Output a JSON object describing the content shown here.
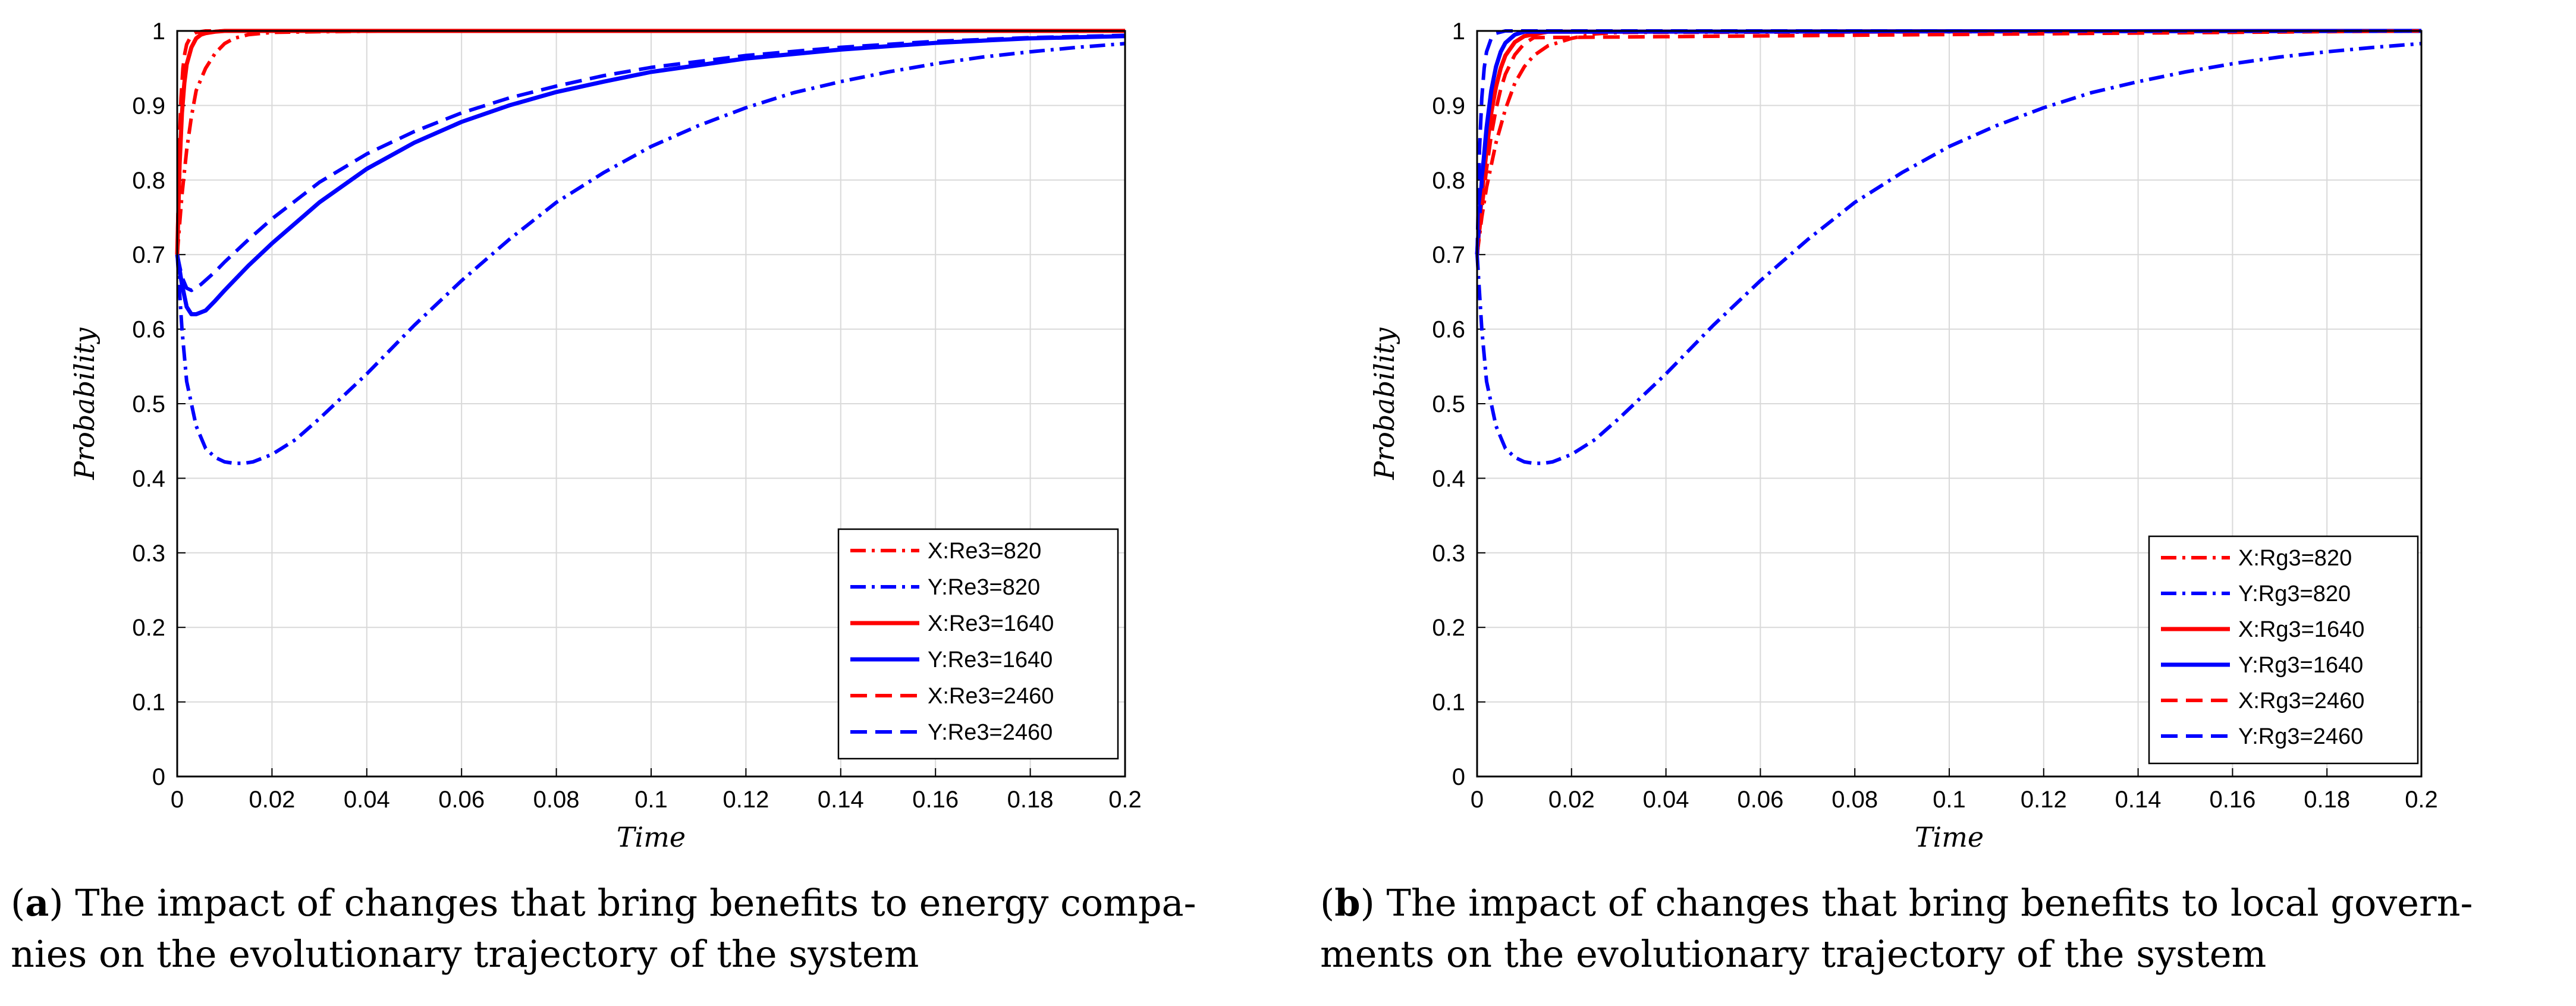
{
  "colors": {
    "red": "#ff0000",
    "blue": "#0000ff",
    "grid": "#d9d9d9",
    "axis": "#000000"
  },
  "chart_data": [
    {
      "type": "line",
      "panel": "a",
      "xlabel": "Time",
      "ylabel": "Probability",
      "xlim": [
        0,
        0.2
      ],
      "ylim": [
        0,
        1
      ],
      "xticks": [
        "0",
        "0.02",
        "0.04",
        "0.06",
        "0.08",
        "0.1",
        "0.12",
        "0.14",
        "0.16",
        "0.18",
        "0.2"
      ],
      "yticks": [
        "0",
        "0.1",
        "0.2",
        "0.3",
        "0.4",
        "0.5",
        "0.6",
        "0.7",
        "0.8",
        "0.9",
        "1"
      ],
      "grid": true,
      "legend_position": "bottom-right",
      "series": [
        {
          "name": "X:Re3=820",
          "color": "red",
          "style": "dashdot",
          "x": [
            0,
            0.001,
            0.002,
            0.003,
            0.004,
            0.006,
            0.008,
            0.01,
            0.012,
            0.015,
            0.02,
            0.03,
            0.05,
            0.1,
            0.2
          ],
          "values": [
            0.7,
            0.78,
            0.84,
            0.885,
            0.92,
            0.95,
            0.97,
            0.983,
            0.99,
            0.995,
            0.998,
            0.999,
            1,
            1,
            1
          ]
        },
        {
          "name": "Y:Re3=820",
          "color": "blue",
          "style": "dashdot",
          "x": [
            0,
            0.001,
            0.002,
            0.004,
            0.006,
            0.008,
            0.01,
            0.012,
            0.014,
            0.016,
            0.02,
            0.025,
            0.03,
            0.04,
            0.05,
            0.06,
            0.07,
            0.08,
            0.09,
            0.1,
            0.11,
            0.12,
            0.13,
            0.14,
            0.15,
            0.16,
            0.17,
            0.18,
            0.19,
            0.2
          ],
          "values": [
            0.7,
            0.6,
            0.53,
            0.47,
            0.44,
            0.428,
            0.422,
            0.42,
            0.42,
            0.422,
            0.432,
            0.452,
            0.48,
            0.54,
            0.605,
            0.665,
            0.72,
            0.77,
            0.81,
            0.845,
            0.873,
            0.897,
            0.917,
            0.932,
            0.945,
            0.956,
            0.965,
            0.972,
            0.978,
            0.983
          ]
        },
        {
          "name": "X:Re3=1640",
          "color": "red",
          "style": "solid",
          "x": [
            0,
            0.0005,
            0.001,
            0.0015,
            0.002,
            0.003,
            0.004,
            0.005,
            0.006,
            0.008,
            0.01,
            0.02,
            0.2
          ],
          "values": [
            0.7,
            0.82,
            0.89,
            0.93,
            0.955,
            0.978,
            0.99,
            0.995,
            0.997,
            0.999,
            1,
            1,
            1
          ]
        },
        {
          "name": "Y:Re3=1640",
          "color": "blue",
          "style": "solid",
          "x": [
            0,
            0.001,
            0.002,
            0.003,
            0.004,
            0.006,
            0.008,
            0.01,
            0.015,
            0.02,
            0.03,
            0.04,
            0.05,
            0.06,
            0.07,
            0.08,
            0.09,
            0.1,
            0.12,
            0.14,
            0.16,
            0.18,
            0.2
          ],
          "values": [
            0.7,
            0.66,
            0.63,
            0.62,
            0.62,
            0.625,
            0.638,
            0.652,
            0.685,
            0.715,
            0.77,
            0.815,
            0.85,
            0.878,
            0.9,
            0.918,
            0.932,
            0.945,
            0.963,
            0.975,
            0.984,
            0.99,
            0.993
          ]
        },
        {
          "name": "X:Re3=2460",
          "color": "red",
          "style": "dashed",
          "x": [
            0,
            0.0004,
            0.0008,
            0.0012,
            0.0016,
            0.002,
            0.003,
            0.004,
            0.006,
            0.01,
            0.2
          ],
          "values": [
            0.7,
            0.84,
            0.91,
            0.95,
            0.97,
            0.982,
            0.994,
            0.998,
            1,
            1,
            1
          ]
        },
        {
          "name": "Y:Re3=2460",
          "color": "blue",
          "style": "dashed",
          "x": [
            0,
            0.001,
            0.002,
            0.003,
            0.005,
            0.008,
            0.01,
            0.015,
            0.02,
            0.03,
            0.04,
            0.05,
            0.06,
            0.07,
            0.08,
            0.09,
            0.1,
            0.12,
            0.14,
            0.16,
            0.18,
            0.2
          ],
          "values": [
            0.7,
            0.67,
            0.655,
            0.652,
            0.66,
            0.677,
            0.69,
            0.72,
            0.748,
            0.797,
            0.835,
            0.865,
            0.89,
            0.91,
            0.926,
            0.94,
            0.951,
            0.967,
            0.978,
            0.986,
            0.991,
            0.994
          ]
        }
      ]
    },
    {
      "type": "line",
      "panel": "b",
      "xlabel": "Time",
      "ylabel": "Probability",
      "xlim": [
        0,
        0.2
      ],
      "ylim": [
        0,
        1
      ],
      "xticks": [
        "0",
        "0.02",
        "0.04",
        "0.06",
        "0.08",
        "0.1",
        "0.12",
        "0.14",
        "0.16",
        "0.18",
        "0.2"
      ],
      "yticks": [
        "0",
        "0.1",
        "0.2",
        "0.3",
        "0.4",
        "0.5",
        "0.6",
        "0.7",
        "0.8",
        "0.9",
        "1"
      ],
      "grid": true,
      "legend_position": "bottom-right",
      "series": [
        {
          "name": "X:Rg3=820",
          "color": "red",
          "style": "dashdot",
          "x": [
            0,
            0.001,
            0.002,
            0.004,
            0.006,
            0.008,
            0.01,
            0.012,
            0.015,
            0.02,
            0.025,
            0.03,
            0.2
          ],
          "values": [
            0.7,
            0.75,
            0.79,
            0.85,
            0.895,
            0.93,
            0.952,
            0.967,
            0.98,
            0.99,
            0.996,
            0.998,
            1
          ]
        },
        {
          "name": "Y:Rg3=820",
          "color": "blue",
          "style": "dashdot",
          "x": [
            0,
            0.001,
            0.002,
            0.004,
            0.006,
            0.008,
            0.01,
            0.012,
            0.014,
            0.016,
            0.02,
            0.025,
            0.03,
            0.04,
            0.05,
            0.06,
            0.07,
            0.08,
            0.09,
            0.1,
            0.11,
            0.12,
            0.13,
            0.14,
            0.15,
            0.16,
            0.17,
            0.18,
            0.19,
            0.2
          ],
          "values": [
            0.7,
            0.6,
            0.53,
            0.47,
            0.44,
            0.428,
            0.422,
            0.42,
            0.42,
            0.422,
            0.432,
            0.452,
            0.48,
            0.54,
            0.605,
            0.665,
            0.72,
            0.77,
            0.81,
            0.845,
            0.873,
            0.897,
            0.917,
            0.932,
            0.945,
            0.956,
            0.965,
            0.972,
            0.978,
            0.983
          ]
        },
        {
          "name": "X:Rg3=1640",
          "color": "red",
          "style": "solid",
          "x": [
            0,
            0.001,
            0.002,
            0.003,
            0.004,
            0.005,
            0.006,
            0.008,
            0.01,
            0.015,
            0.2
          ],
          "values": [
            0.7,
            0.78,
            0.84,
            0.89,
            0.925,
            0.95,
            0.967,
            0.985,
            0.993,
            0.999,
            1
          ]
        },
        {
          "name": "Y:Rg3=1640",
          "color": "blue",
          "style": "solid",
          "x": [
            0,
            0.001,
            0.002,
            0.003,
            0.004,
            0.005,
            0.006,
            0.008,
            0.01,
            0.2
          ],
          "values": [
            0.7,
            0.8,
            0.87,
            0.92,
            0.952,
            0.972,
            0.984,
            0.995,
            0.999,
            1
          ]
        },
        {
          "name": "X:Rg3=2460",
          "color": "red",
          "style": "dashed",
          "x": [
            0,
            0.001,
            0.002,
            0.003,
            0.004,
            0.005,
            0.006,
            0.008,
            0.01,
            0.012,
            0.2
          ],
          "values": [
            0.7,
            0.76,
            0.815,
            0.86,
            0.895,
            0.922,
            0.942,
            0.968,
            0.983,
            0.991,
            1
          ]
        },
        {
          "name": "Y:Rg3=2460",
          "color": "blue",
          "style": "dashed",
          "x": [
            0,
            0.0005,
            0.001,
            0.0015,
            0.002,
            0.003,
            0.004,
            0.006,
            0.2
          ],
          "values": [
            0.7,
            0.84,
            0.91,
            0.95,
            0.972,
            0.99,
            0.997,
            1,
            1
          ]
        }
      ]
    }
  ],
  "captions": [
    {
      "label": "a",
      "text": "The impact of changes that bring benefits to energy compa-",
      "text2": "nies on the evolutionary trajectory of the system"
    },
    {
      "label": "b",
      "text": "The impact of changes that bring benefits to local govern-",
      "text2": "ments on the evolutionary trajectory of the system"
    }
  ]
}
